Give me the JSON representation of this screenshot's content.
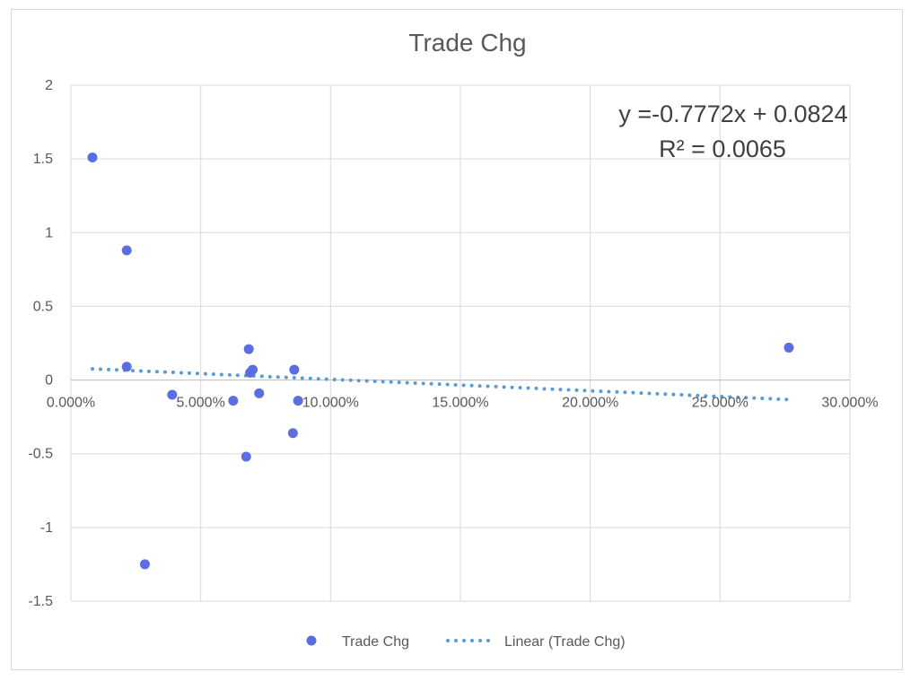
{
  "chart_data": {
    "type": "scatter",
    "title": "Trade Chg",
    "xlabel": "",
    "ylabel": "",
    "xlim": [
      0,
      0.3
    ],
    "ylim": [
      -1.5,
      2
    ],
    "x_ticks": [
      0,
      0.05,
      0.1,
      0.15,
      0.2,
      0.25,
      0.3
    ],
    "x_tick_labels": [
      "0.000%",
      "5.000%",
      "10.000%",
      "15.000%",
      "20.000%",
      "25.000%",
      "30.000%"
    ],
    "y_ticks": [
      -1.5,
      -1,
      -0.5,
      0,
      0.5,
      1,
      1.5,
      2
    ],
    "y_tick_labels": [
      "-1.5",
      "-1",
      "-0.5",
      "0",
      "0.5",
      "1",
      "1.5",
      "2"
    ],
    "grid": true,
    "legend": "bottom",
    "series": [
      {
        "name": "Trade Chg",
        "color": "#5b6ee1",
        "points": [
          {
            "x": 0.0083,
            "y": 1.51
          },
          {
            "x": 0.0215,
            "y": 0.88
          },
          {
            "x": 0.0215,
            "y": 0.09
          },
          {
            "x": 0.0285,
            "y": -1.25
          },
          {
            "x": 0.039,
            "y": -0.1
          },
          {
            "x": 0.0625,
            "y": -0.14
          },
          {
            "x": 0.0675,
            "y": -0.52
          },
          {
            "x": 0.0685,
            "y": 0.21
          },
          {
            "x": 0.069,
            "y": 0.05
          },
          {
            "x": 0.07,
            "y": 0.07
          },
          {
            "x": 0.0725,
            "y": -0.09
          },
          {
            "x": 0.0855,
            "y": -0.36
          },
          {
            "x": 0.086,
            "y": 0.07
          },
          {
            "x": 0.0875,
            "y": -0.14
          },
          {
            "x": 0.2765,
            "y": 0.22
          }
        ]
      }
    ],
    "trendline": {
      "name": "Linear (Trade Chg)",
      "color": "#5b9bd5",
      "slope": -0.7772,
      "intercept": 0.0824,
      "x_range": [
        0.0083,
        0.2765
      ]
    },
    "annotations": [
      {
        "text": "y =-0.7772x + 0.0824"
      },
      {
        "text": "R² = 0.0065"
      }
    ]
  }
}
